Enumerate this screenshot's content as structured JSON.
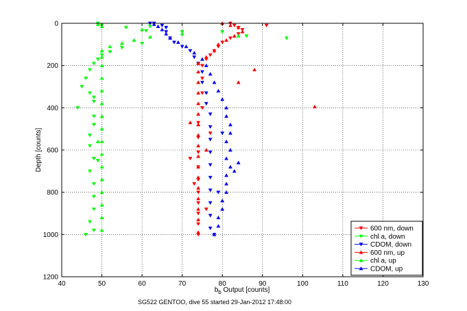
{
  "chart_data": {
    "type": "scatter",
    "title": "",
    "caption": "SG522 GENTOO, dive 55 started 29-Jan-2012 17:48:00",
    "xlabel_main": "b",
    "xlabel_sub": "b",
    "xlabel_rest": " Output [counts]",
    "ylabel": "Depth [counts]",
    "xlim": [
      40,
      130
    ],
    "ylim": [
      0,
      1200
    ],
    "y_reversed": true,
    "xticks": [
      40,
      50,
      60,
      70,
      80,
      90,
      100,
      110,
      120,
      130
    ],
    "yticks": [
      0,
      200,
      400,
      600,
      800,
      1000,
      1200
    ],
    "grid": true,
    "legend_position": "bottom-right",
    "series": [
      {
        "name": "600 nm, down",
        "color": "#ff0000",
        "marker": "triangle-down",
        "points": [
          [
            82,
            0
          ],
          [
            83,
            10
          ],
          [
            84,
            20
          ],
          [
            85,
            30
          ],
          [
            91,
            10
          ],
          [
            84,
            50
          ],
          [
            82,
            70
          ],
          [
            80,
            90
          ],
          [
            79,
            110
          ],
          [
            78,
            130
          ],
          [
            77,
            150
          ],
          [
            76,
            170
          ],
          [
            75,
            200
          ],
          [
            75,
            260
          ],
          [
            75,
            330
          ],
          [
            75,
            400
          ],
          [
            74,
            470
          ],
          [
            74,
            540
          ],
          [
            74,
            610
          ],
          [
            74,
            680
          ],
          [
            74,
            740
          ],
          [
            74,
            800
          ],
          [
            74,
            850
          ],
          [
            74,
            900
          ],
          [
            74,
            950
          ],
          [
            74,
            1000
          ],
          [
            73,
            760
          ],
          [
            72,
            640
          ],
          [
            77,
            520
          ],
          [
            76,
            880
          ]
        ]
      },
      {
        "name": "chl a, down",
        "color": "#00ff00",
        "marker": "triangle-down",
        "points": [
          [
            49,
            0
          ],
          [
            50,
            10
          ],
          [
            56,
            20
          ],
          [
            62,
            15
          ],
          [
            61,
            35
          ],
          [
            66,
            20
          ],
          [
            70,
            40
          ],
          [
            80,
            40
          ],
          [
            86,
            60
          ],
          [
            96,
            70
          ],
          [
            60,
            95
          ],
          [
            55,
            115
          ],
          [
            52,
            135
          ],
          [
            50,
            150
          ],
          [
            49,
            170
          ],
          [
            48,
            190
          ],
          [
            47,
            220
          ],
          [
            46,
            260
          ],
          [
            45,
            300
          ],
          [
            47,
            330
          ],
          [
            48,
            370
          ],
          [
            44,
            400
          ],
          [
            48,
            440
          ],
          [
            48,
            480
          ],
          [
            47,
            530
          ],
          [
            47,
            580
          ],
          [
            48,
            640
          ],
          [
            47,
            700
          ],
          [
            48,
            760
          ],
          [
            48,
            820
          ],
          [
            48,
            880
          ],
          [
            47,
            940
          ],
          [
            46,
            1000
          ],
          [
            48,
            980
          ],
          [
            49,
            650
          ],
          [
            48,
            350
          ]
        ]
      },
      {
        "name": "CDOM, down",
        "color": "#0000ff",
        "marker": "triangle-down",
        "points": [
          [
            62,
            0
          ],
          [
            63,
            0
          ],
          [
            65,
            10
          ],
          [
            66,
            20
          ],
          [
            66,
            40
          ],
          [
            67,
            70
          ],
          [
            68,
            90
          ],
          [
            70,
            110
          ],
          [
            72,
            130
          ],
          [
            73,
            160
          ],
          [
            74,
            190
          ],
          [
            75,
            230
          ],
          [
            75,
            280
          ],
          [
            76,
            330
          ],
          [
            76,
            380
          ],
          [
            77,
            430
          ],
          [
            77,
            490
          ],
          [
            77,
            550
          ],
          [
            77,
            610
          ],
          [
            77,
            670
          ],
          [
            77,
            730
          ],
          [
            77,
            790
          ],
          [
            77,
            850
          ],
          [
            77,
            910
          ],
          [
            77,
            970
          ],
          [
            78,
            1000
          ],
          [
            80,
            520
          ],
          [
            79,
            800
          ]
        ]
      },
      {
        "name": "600 nm, up",
        "color": "#ff0000",
        "marker": "triangle-up",
        "points": [
          [
            80,
            0
          ],
          [
            82,
            10
          ],
          [
            84,
            20
          ],
          [
            85,
            40
          ],
          [
            83,
            60
          ],
          [
            81,
            80
          ],
          [
            79,
            100
          ],
          [
            78,
            130
          ],
          [
            76,
            160
          ],
          [
            74,
            190
          ],
          [
            74,
            230
          ],
          [
            74,
            280
          ],
          [
            74,
            330
          ],
          [
            74,
            380
          ],
          [
            74,
            430
          ],
          [
            74,
            480
          ],
          [
            74,
            530
          ],
          [
            74,
            580
          ],
          [
            74,
            630
          ],
          [
            74,
            680
          ],
          [
            74,
            730
          ],
          [
            74,
            780
          ],
          [
            74,
            830
          ],
          [
            74,
            880
          ],
          [
            74,
            930
          ],
          [
            74,
            990
          ],
          [
            88,
            220
          ],
          [
            84,
            280
          ],
          [
            103,
            395
          ],
          [
            72,
            470
          ],
          [
            76,
            600
          ]
        ]
      },
      {
        "name": "chl a, up",
        "color": "#00ff00",
        "marker": "triangle-up",
        "points": [
          [
            49,
            5
          ],
          [
            50,
            15
          ],
          [
            60,
            30
          ],
          [
            70,
            50
          ],
          [
            62,
            65
          ],
          [
            58,
            80
          ],
          [
            55,
            95
          ],
          [
            52,
            110
          ],
          [
            50,
            130
          ],
          [
            50,
            160
          ],
          [
            50,
            200
          ],
          [
            50,
            260
          ],
          [
            50,
            320
          ],
          [
            50,
            380
          ],
          [
            50,
            440
          ],
          [
            50,
            500
          ],
          [
            50,
            560
          ],
          [
            50,
            620
          ],
          [
            50,
            680
          ],
          [
            50,
            740
          ],
          [
            50,
            800
          ],
          [
            50,
            860
          ],
          [
            50,
            920
          ],
          [
            50,
            980
          ],
          [
            84,
            60
          ],
          [
            49,
            560
          ]
        ]
      },
      {
        "name": "CDOM, up",
        "color": "#0000ff",
        "marker": "triangle-up",
        "points": [
          [
            63,
            5
          ],
          [
            64,
            15
          ],
          [
            65,
            30
          ],
          [
            66,
            50
          ],
          [
            67,
            70
          ],
          [
            69,
            90
          ],
          [
            71,
            110
          ],
          [
            73,
            140
          ],
          [
            75,
            170
          ],
          [
            76,
            200
          ],
          [
            77,
            240
          ],
          [
            78,
            280
          ],
          [
            79,
            320
          ],
          [
            80,
            360
          ],
          [
            81,
            400
          ],
          [
            81,
            440
          ],
          [
            82,
            480
          ],
          [
            82,
            520
          ],
          [
            81,
            560
          ],
          [
            82,
            600
          ],
          [
            81,
            640
          ],
          [
            82,
            680
          ],
          [
            81,
            720
          ],
          [
            81,
            760
          ],
          [
            81,
            800
          ],
          [
            80,
            840
          ],
          [
            80,
            880
          ],
          [
            79,
            920
          ],
          [
            79,
            960
          ],
          [
            78,
            1000
          ],
          [
            84,
            660
          ],
          [
            83,
            700
          ]
        ]
      }
    ]
  }
}
